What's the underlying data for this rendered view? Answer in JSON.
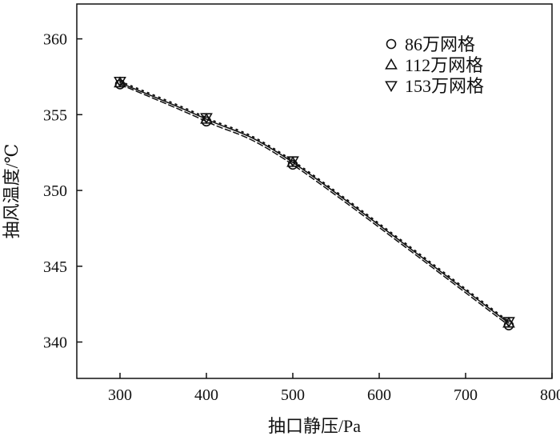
{
  "chart_data": {
    "type": "line",
    "xlabel": "抽口静压/Pa",
    "ylabel": "抽风温度/℃",
    "xlim": [
      250,
      800
    ],
    "ylim": [
      337.6,
      362.3
    ],
    "xticks": [
      300,
      400,
      500,
      600,
      700,
      800
    ],
    "yticks": [
      340,
      345,
      350,
      355,
      360
    ],
    "grid": false,
    "legend_position": "top-right",
    "x": [
      300,
      400,
      500,
      750
    ],
    "series": [
      {
        "name": "86万网格",
        "marker": "circle",
        "line": "dashed",
        "values": [
          357.0,
          354.55,
          351.7,
          341.1
        ]
      },
      {
        "name": "112万网格",
        "marker": "triangle-up",
        "line": "solid",
        "values": [
          357.1,
          354.7,
          351.85,
          341.25
        ]
      },
      {
        "name": "153万网格",
        "marker": "triangle-down",
        "line": "dotted",
        "values": [
          357.2,
          354.8,
          351.95,
          341.35
        ]
      }
    ],
    "colors": {
      "ink": "#111111"
    }
  }
}
